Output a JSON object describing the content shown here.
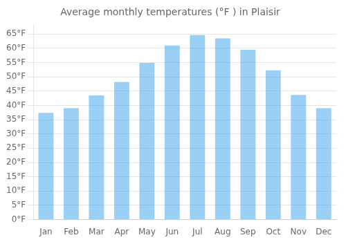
{
  "chart_data": {
    "type": "bar",
    "title": "Average monthly temperatures (°F ) in Plaisir",
    "categories": [
      "Jan",
      "Feb",
      "Mar",
      "Apr",
      "May",
      "Jun",
      "Jul",
      "Aug",
      "Sep",
      "Oct",
      "Nov",
      "Dec"
    ],
    "values": [
      37.4,
      39.0,
      43.5,
      48.2,
      54.9,
      61.0,
      64.6,
      63.5,
      59.5,
      52.3,
      43.7,
      39.0
    ],
    "ylim": [
      0,
      68
    ],
    "yticks": [
      {
        "value": 0,
        "label": "0°F"
      },
      {
        "value": 5,
        "label": "5°F"
      },
      {
        "value": 10,
        "label": "10°F"
      },
      {
        "value": 15,
        "label": "15°F"
      },
      {
        "value": 20,
        "label": "20°F"
      },
      {
        "value": 25,
        "label": "25°F"
      },
      {
        "value": 30,
        "label": "30°F"
      },
      {
        "value": 35,
        "label": "35°F"
      },
      {
        "value": 40,
        "label": "40°F"
      },
      {
        "value": 45,
        "label": "45°F"
      },
      {
        "value": 50,
        "label": "50°F"
      },
      {
        "value": 55,
        "label": "55°F"
      },
      {
        "value": 60,
        "label": "60°F"
      },
      {
        "value": 65,
        "label": "65°F"
      }
    ],
    "grid": true
  }
}
